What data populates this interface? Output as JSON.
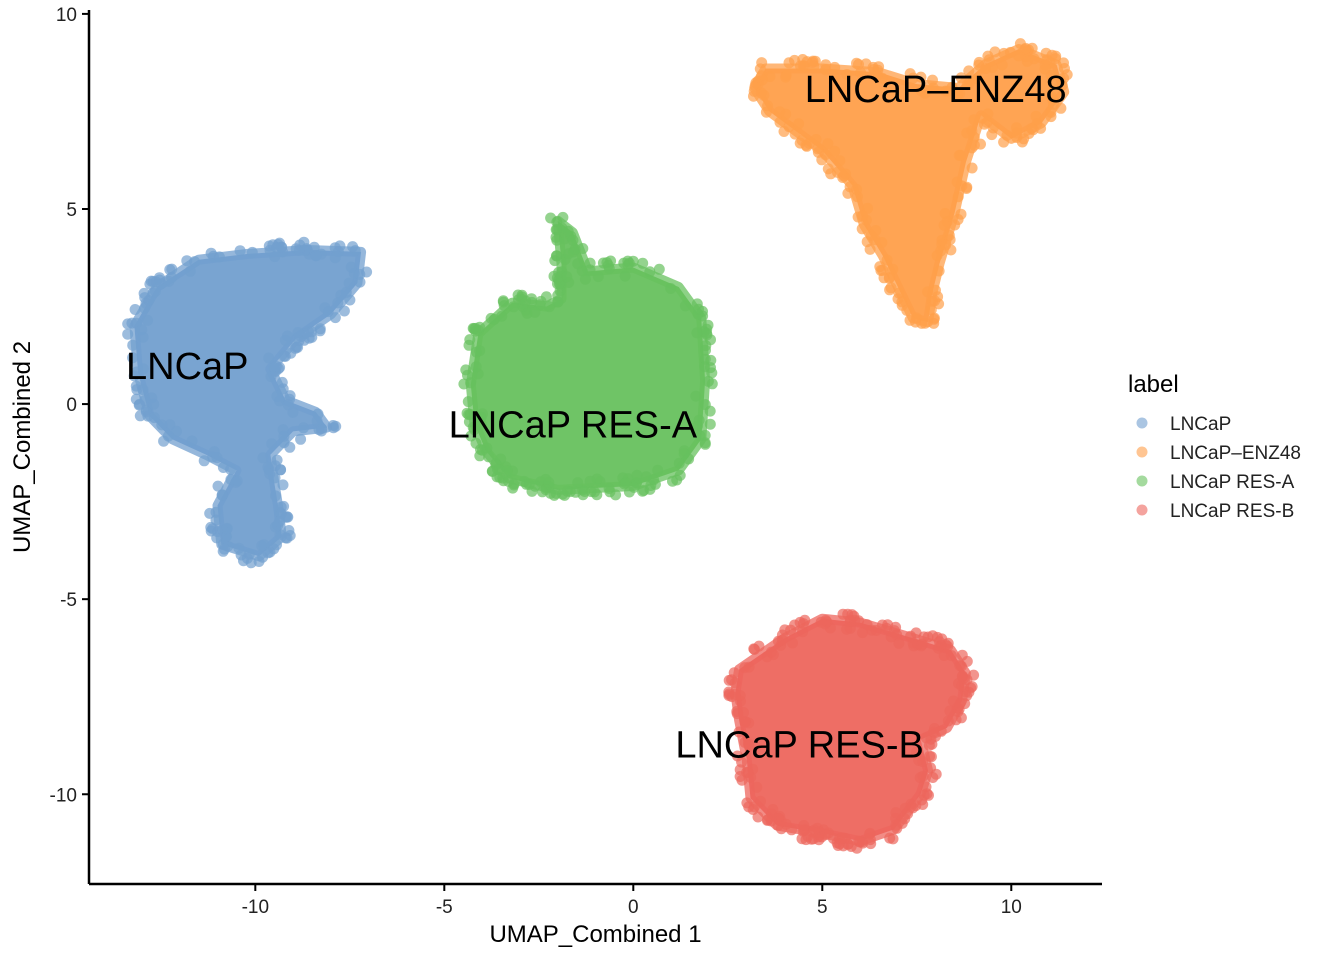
{
  "chart_data": {
    "type": "scatter",
    "xlabel": "UMAP_Combined 1",
    "ylabel": "UMAP_Combined 2",
    "xlim": [
      -14.4,
      12.4
    ],
    "ylim": [
      -12.3,
      10.1
    ],
    "x_ticks": [
      -10,
      -5,
      0,
      5,
      10
    ],
    "y_ticks": [
      -10,
      -5,
      0,
      5,
      10
    ],
    "grid": false,
    "legend": {
      "title": "label",
      "position": "right",
      "entries": [
        "LNCaP",
        "LNCaP–ENZ48",
        "LNCaP RES-A",
        "LNCaP RES-B"
      ]
    },
    "colors": {
      "LNCaP": "#729fcf",
      "LNCaP–ENZ48": "#ff9f4a",
      "LNCaP RES-A": "#67c15e",
      "LNCaP RES-B": "#ed665d"
    },
    "series": [
      {
        "name": "LNCaP",
        "label_position": [
          -11.8,
          0.9
        ],
        "outline": [
          [
            -13.2,
            2.0
          ],
          [
            -12.6,
            3.0
          ],
          [
            -11.5,
            3.7
          ],
          [
            -10.2,
            3.85
          ],
          [
            -8.6,
            3.95
          ],
          [
            -7.2,
            3.9
          ],
          [
            -7.3,
            3.1
          ],
          [
            -8.0,
            2.3
          ],
          [
            -8.9,
            1.7
          ],
          [
            -9.6,
            0.9
          ],
          [
            -9.2,
            0.1
          ],
          [
            -8.4,
            -0.2
          ],
          [
            -8.1,
            -0.6
          ],
          [
            -9.0,
            -0.7
          ],
          [
            -9.6,
            -1.3
          ],
          [
            -9.5,
            -2.0
          ],
          [
            -9.4,
            -2.6
          ],
          [
            -9.3,
            -3.4
          ],
          [
            -9.9,
            -3.9
          ],
          [
            -10.9,
            -3.6
          ],
          [
            -11.0,
            -2.6
          ],
          [
            -10.5,
            -1.7
          ],
          [
            -11.3,
            -1.3
          ],
          [
            -12.2,
            -0.9
          ],
          [
            -12.8,
            -0.3
          ],
          [
            -13.1,
            0.8
          ]
        ]
      },
      {
        "name": "LNCaP–ENZ48",
        "label_position": [
          8.0,
          8.0
        ],
        "outline": [
          [
            3.2,
            8.1
          ],
          [
            3.5,
            8.6
          ],
          [
            5.0,
            8.6
          ],
          [
            6.5,
            8.5
          ],
          [
            7.5,
            8.2
          ],
          [
            8.6,
            8.1
          ],
          [
            9.3,
            8.7
          ],
          [
            10.2,
            9.1
          ],
          [
            11.2,
            8.7
          ],
          [
            11.4,
            8.0
          ],
          [
            10.8,
            7.2
          ],
          [
            10.0,
            6.8
          ],
          [
            9.2,
            7.4
          ],
          [
            8.8,
            6.2
          ],
          [
            8.5,
            4.9
          ],
          [
            8.1,
            3.6
          ],
          [
            7.9,
            2.8
          ],
          [
            7.8,
            2.1
          ],
          [
            7.4,
            2.2
          ],
          [
            7.0,
            3.0
          ],
          [
            6.6,
            3.8
          ],
          [
            6.1,
            4.6
          ],
          [
            5.8,
            5.6
          ],
          [
            5.0,
            6.5
          ],
          [
            4.3,
            7.0
          ],
          [
            3.6,
            7.5
          ]
        ]
      },
      {
        "name": "LNCaP RES-A",
        "label_position": [
          -1.6,
          -0.6
        ],
        "outline": [
          [
            -4.3,
            0.5
          ],
          [
            -4.1,
            1.8
          ],
          [
            -3.2,
            2.6
          ],
          [
            -2.3,
            2.5
          ],
          [
            -1.9,
            2.7
          ],
          [
            -1.9,
            3.6
          ],
          [
            -2.0,
            4.7
          ],
          [
            -1.6,
            4.4
          ],
          [
            -1.2,
            3.4
          ],
          [
            0.0,
            3.5
          ],
          [
            1.2,
            3.0
          ],
          [
            1.8,
            2.2
          ],
          [
            1.9,
            0.6
          ],
          [
            1.8,
            -0.9
          ],
          [
            1.2,
            -1.7
          ],
          [
            0.0,
            -2.1
          ],
          [
            -2.0,
            -2.2
          ],
          [
            -3.3,
            -1.9
          ],
          [
            -3.9,
            -1.2
          ],
          [
            -4.2,
            -0.5
          ]
        ]
      },
      {
        "name": "LNCaP RES-B",
        "label_position": [
          4.4,
          -8.8
        ],
        "outline": [
          [
            2.8,
            -6.8
          ],
          [
            3.4,
            -6.4
          ],
          [
            4.0,
            -6.0
          ],
          [
            5.0,
            -5.5
          ],
          [
            6.0,
            -5.6
          ],
          [
            7.4,
            -6.0
          ],
          [
            8.4,
            -6.3
          ],
          [
            8.8,
            -6.9
          ],
          [
            8.7,
            -7.6
          ],
          [
            8.3,
            -8.3
          ],
          [
            7.6,
            -8.6
          ],
          [
            7.8,
            -9.4
          ],
          [
            7.6,
            -10.0
          ],
          [
            6.9,
            -10.9
          ],
          [
            6.0,
            -11.2
          ],
          [
            5.0,
            -11.0
          ],
          [
            3.8,
            -10.8
          ],
          [
            3.1,
            -10.1
          ],
          [
            3.0,
            -9.1
          ],
          [
            2.8,
            -8.1
          ],
          [
            2.7,
            -7.4
          ]
        ]
      }
    ]
  }
}
